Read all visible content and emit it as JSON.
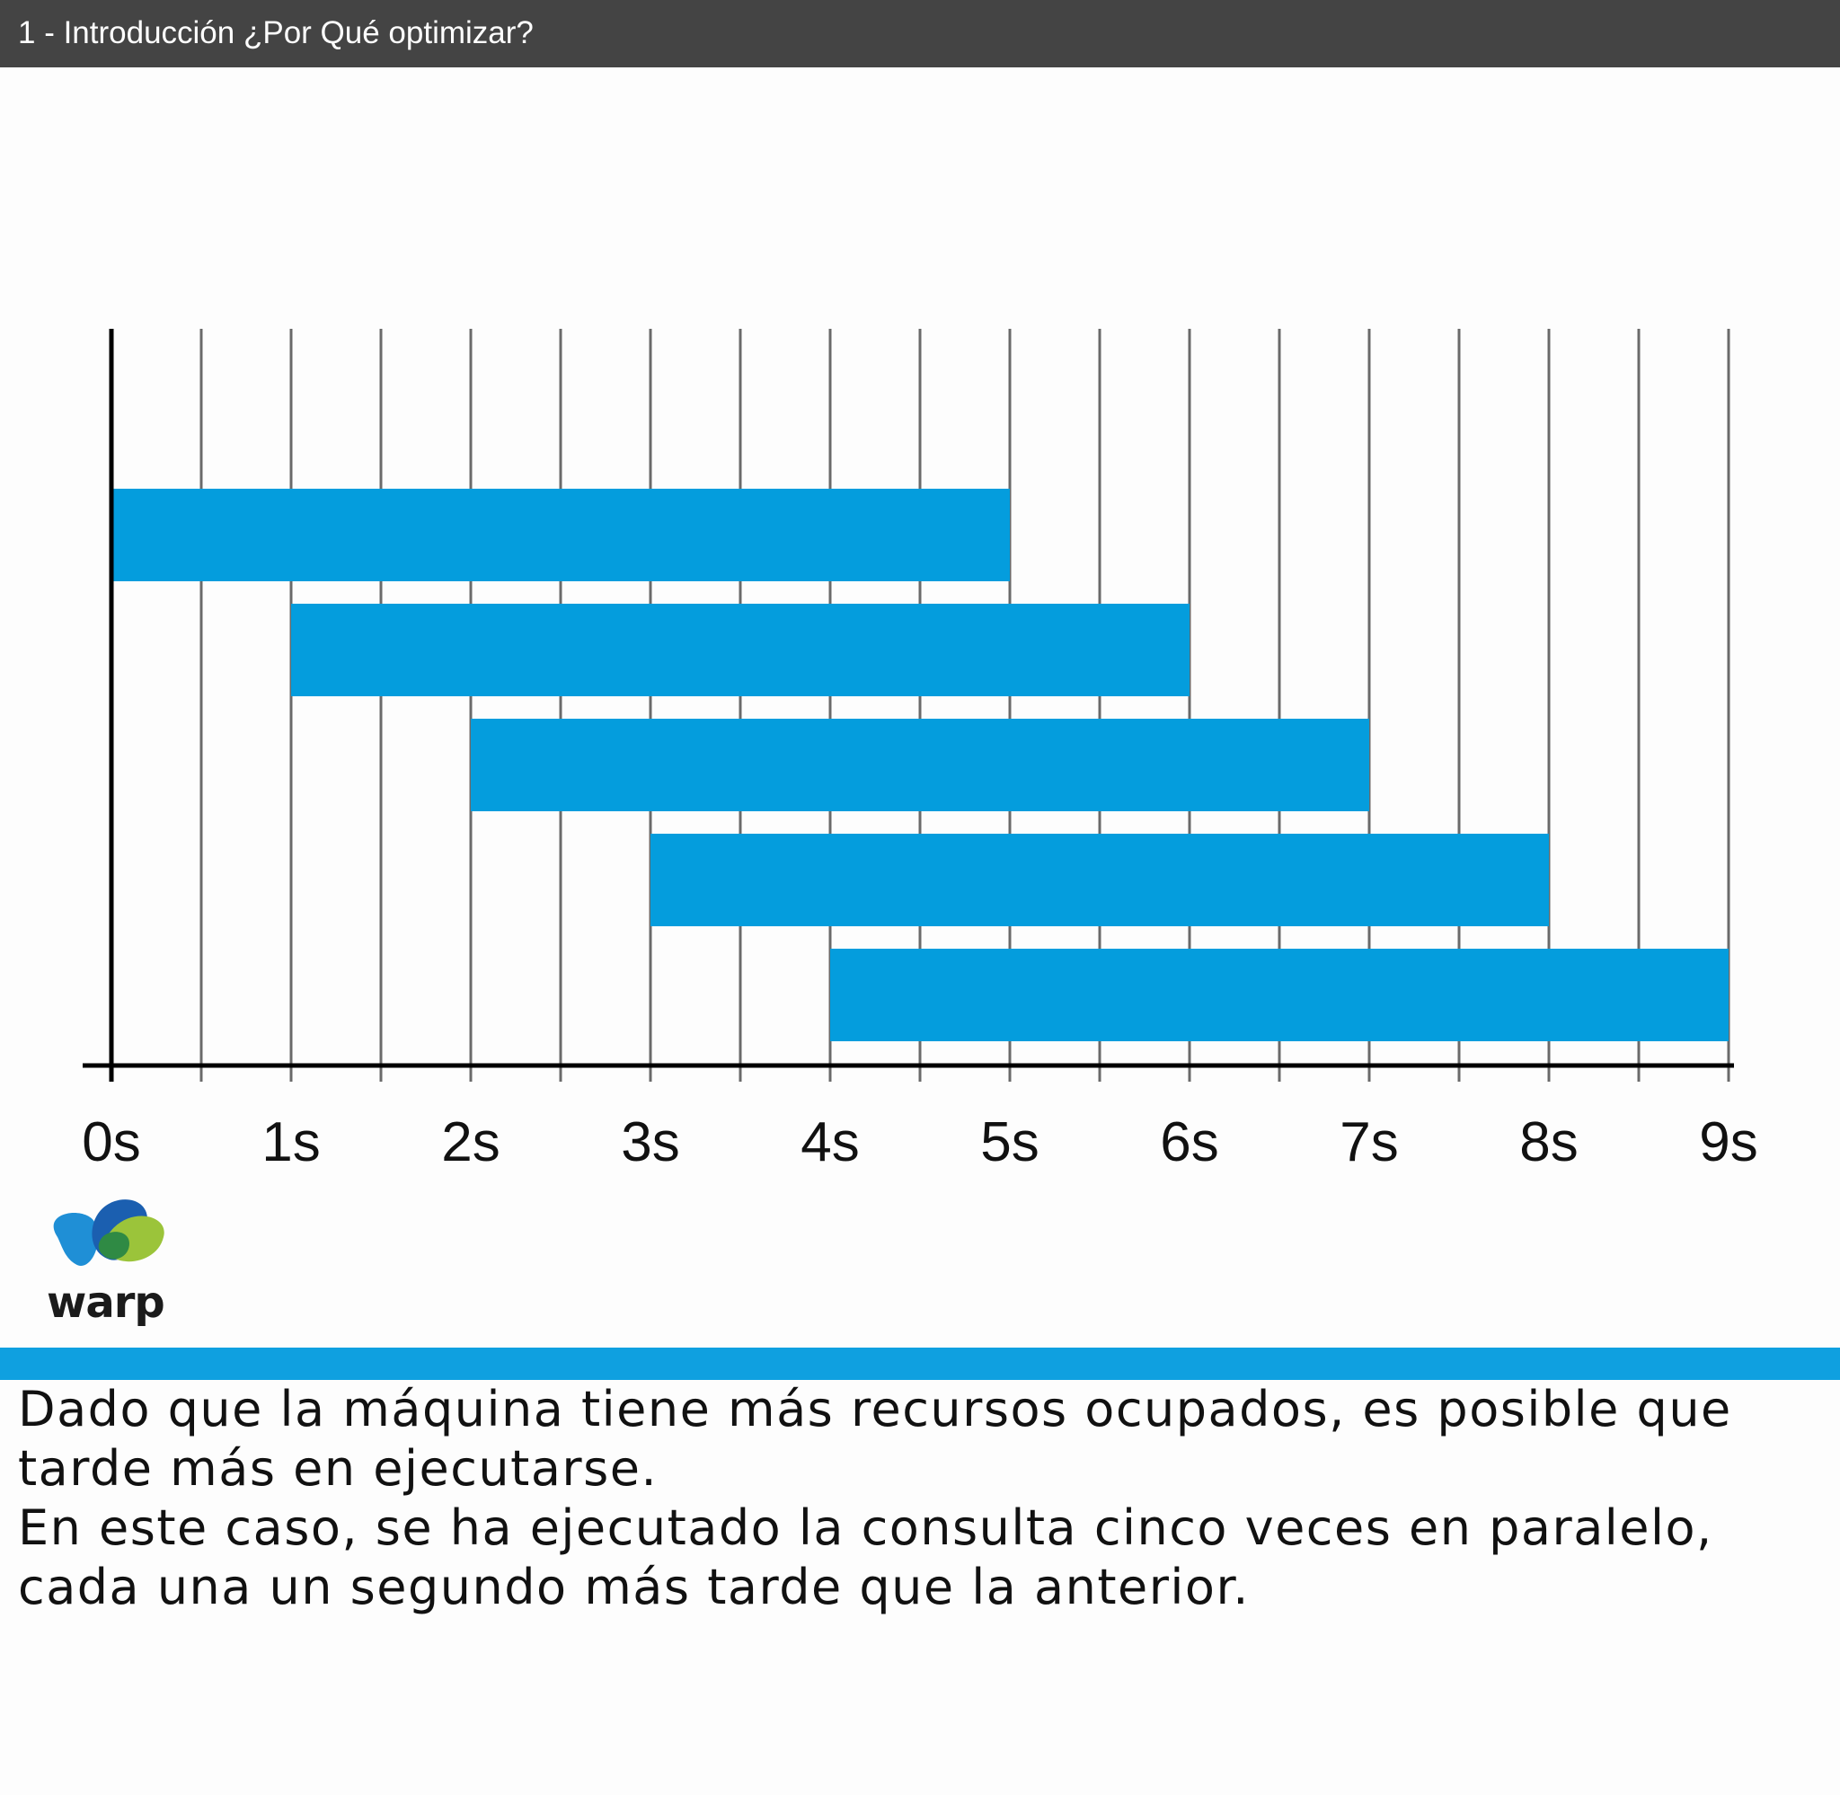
{
  "header": {
    "title": "1 - Introducción ¿Por Qué optimizar?"
  },
  "chart_data": {
    "type": "bar",
    "orientation": "horizontal",
    "x_ticks": [
      "0s",
      "1s",
      "2s",
      "3s",
      "4s",
      "5s",
      "6s",
      "7s",
      "8s",
      "9s"
    ],
    "xlim": [
      0,
      9
    ],
    "grid": "vertical lines at every 0.5 s",
    "bars": [
      {
        "start": 0,
        "end": 5
      },
      {
        "start": 1,
        "end": 6
      },
      {
        "start": 2,
        "end": 7
      },
      {
        "start": 3,
        "end": 8
      },
      {
        "start": 4,
        "end": 9
      }
    ],
    "bar_color": "#049ddd"
  },
  "logo": {
    "text": "warp"
  },
  "caption": {
    "paragraph_1": "Dado que la máquina tiene más recursos ocupados, es posible que tarde más en ejecutarse.",
    "paragraph_2": "En este caso, se ha ejecutado la consulta cinco veces en paralelo, cada una un segundo más tarde que la anterior."
  },
  "colors": {
    "header_bg": "#444444",
    "accent": "#0fa0e0"
  }
}
